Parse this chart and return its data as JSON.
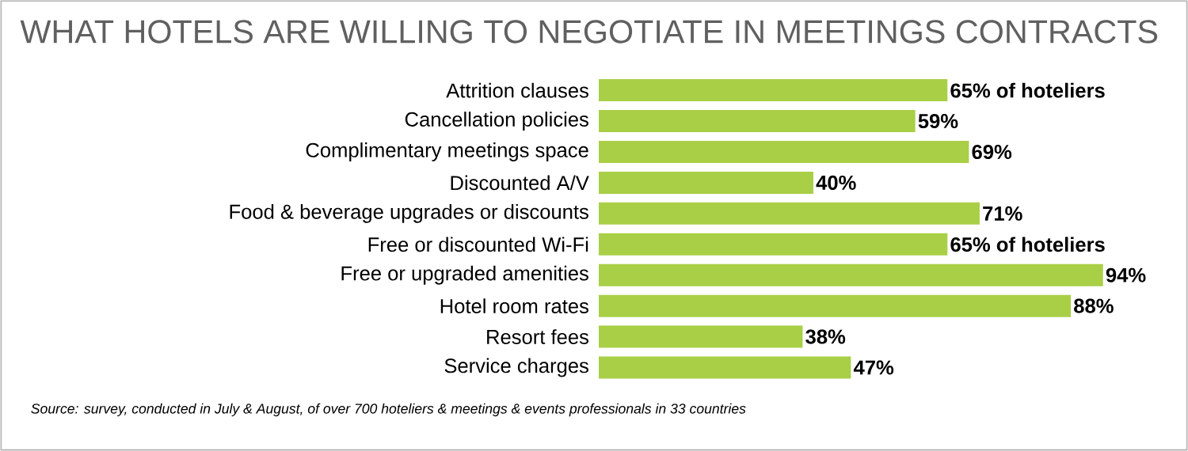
{
  "chart_data": {
    "type": "bar",
    "orientation": "horizontal",
    "title": "WHAT HOTELS ARE WILLING TO NEGOTIATE IN MEETINGS CONTRACTS",
    "categories": [
      "Attrition clauses",
      "Cancellation policies",
      "Complimentary meetings space",
      "Discounted A/V",
      "Food & beverage upgrades or discounts",
      "Free or discounted Wi-Fi",
      "Free or upgraded amenities",
      "Hotel room rates",
      "Resort fees",
      "Service charges"
    ],
    "values": [
      65,
      59,
      69,
      40,
      71,
      65,
      94,
      88,
      38,
      47
    ],
    "value_labels": [
      "65% of hoteliers",
      "59%",
      "69%",
      "40%",
      "71%",
      "65% of hoteliers",
      "94%",
      "88%",
      "38%",
      "47%"
    ],
    "color": "#a9cf46",
    "annotations": [
      "Source: survey, conducted in July & August, of over 700 hoteliers & meetings & events professionals in 33 countries"
    ]
  }
}
